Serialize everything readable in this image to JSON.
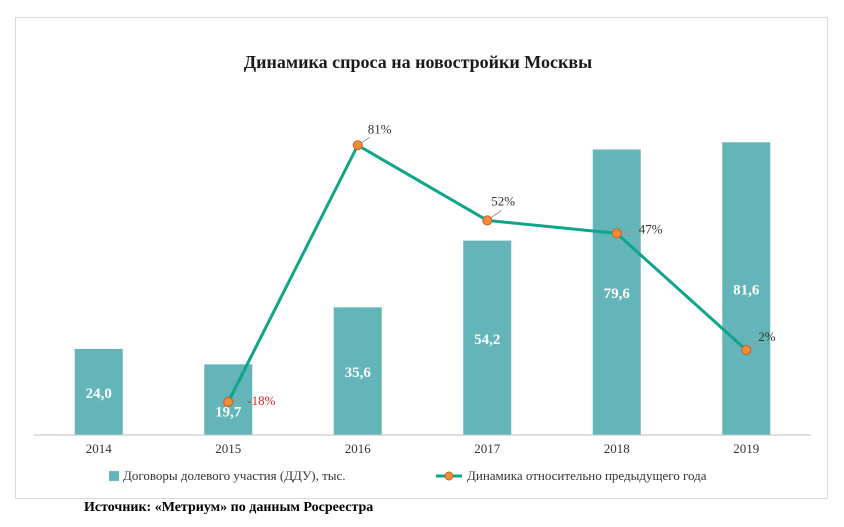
{
  "colors": {
    "bar": "#63b5b9",
    "line": "#0ea58a",
    "marker_fill": "#f28c3a",
    "marker_stroke": "#c9601a",
    "negative_label": "#e02424",
    "positive_label": "#333333",
    "axis": "#bfbfbf"
  },
  "chart_data": {
    "type": "bar",
    "title": "Динамика спроса на новостройки Москвы",
    "categories": [
      "2014",
      "2015",
      "2016",
      "2017",
      "2018",
      "2019"
    ],
    "series": [
      {
        "name": "Договоры долевого участия (ДДУ), тыс.",
        "type": "bar",
        "values": [
          24.0,
          19.7,
          35.6,
          54.2,
          79.6,
          81.6
        ],
        "labels": [
          "24,0",
          "19,7",
          "35,6",
          "54,2",
          "79,6",
          "81,6"
        ]
      },
      {
        "name": "Динамика относительно предыдущего года",
        "type": "line",
        "points": [
          {
            "category": "2015",
            "value": -18,
            "label": "-18%"
          },
          {
            "category": "2016",
            "value": 81,
            "label": "81%"
          },
          {
            "category": "2017",
            "value": 52,
            "label": "52%"
          },
          {
            "category": "2018",
            "value": 47,
            "label": "47%"
          },
          {
            "category": "2019",
            "value": 2,
            "label": "2%"
          }
        ]
      }
    ],
    "bar_axis_range": [
      0,
      90
    ],
    "line_axis_range": [
      -30,
      100
    ],
    "axis_labels_visible": false,
    "grid": false,
    "legend_position": "bottom"
  },
  "source": "Источник: «Метриум» по данным Росреестра"
}
